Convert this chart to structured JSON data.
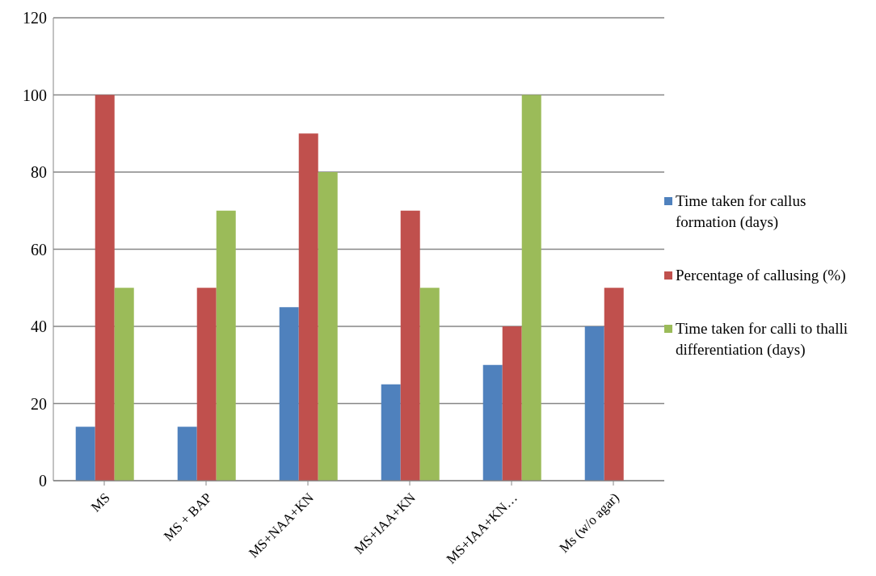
{
  "chart_data": {
    "type": "bar",
    "categories": [
      "MS",
      "MS + BAP",
      "MS+NAA+KN",
      "MS+IAA+KN",
      "MS+IAA+KN…",
      "Ms (w/o agar)"
    ],
    "series": [
      {
        "name": "Time taken for callus formation (days)",
        "color": "#4f81bd",
        "values": [
          14,
          14,
          45,
          25,
          30,
          40
        ]
      },
      {
        "name": "Percentage of callusing (%)",
        "color": "#c0504d",
        "values": [
          100,
          50,
          90,
          70,
          40,
          50
        ]
      },
      {
        "name": "Time taken for calli to thalli differentiation (days)",
        "color": "#9bbb59",
        "values": [
          50,
          70,
          80,
          50,
          100,
          null
        ]
      }
    ],
    "ylim": [
      0,
      120
    ],
    "yticks": [
      0,
      20,
      40,
      60,
      80,
      100,
      120
    ],
    "grid": "y",
    "legend": "right"
  }
}
